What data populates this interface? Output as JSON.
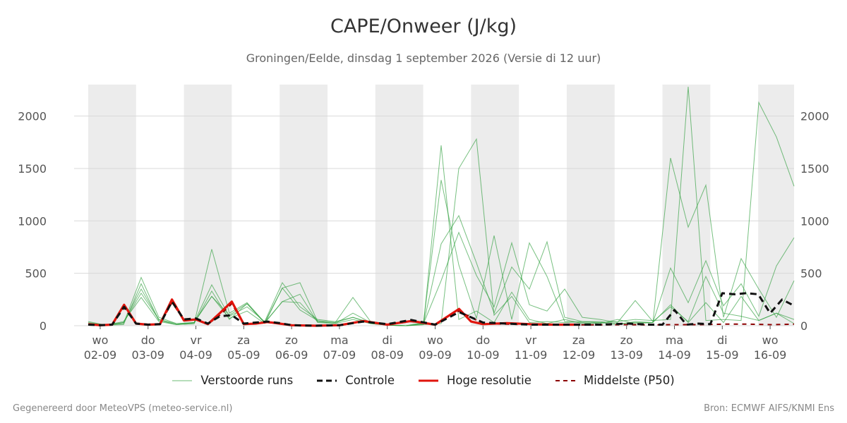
{
  "chart_data": {
    "type": "line",
    "title": "CAPE/Onweer (J/kg)",
    "subtitle": "Groningen/Eelde, dinsdag  1 september 2026 (Versie di 12 uur)",
    "ylim": [
      0,
      2300
    ],
    "yticks": [
      0,
      500,
      1000,
      1500,
      2000
    ],
    "grid": true,
    "legend_position": "bottom",
    "days": [
      {
        "dow": "wo",
        "date": "02-09"
      },
      {
        "dow": "do",
        "date": "03-09"
      },
      {
        "dow": "vr",
        "date": "04-09"
      },
      {
        "dow": "za",
        "date": "05-09"
      },
      {
        "dow": "zo",
        "date": "06-09"
      },
      {
        "dow": "ma",
        "date": "07-09"
      },
      {
        "dow": "di",
        "date": "08-09"
      },
      {
        "dow": "wo",
        "date": "09-09"
      },
      {
        "dow": "do",
        "date": "10-09"
      },
      {
        "dow": "vr",
        "date": "11-09"
      },
      {
        "dow": "za",
        "date": "12-09"
      },
      {
        "dow": "zo",
        "date": "13-09"
      },
      {
        "dow": "ma",
        "date": "14-09"
      },
      {
        "dow": "di",
        "date": "15-09"
      },
      {
        "dow": "wo",
        "date": "16-09"
      }
    ],
    "x_day_range": [
      -0.25,
      14.5
    ],
    "series": [
      {
        "name": "Controle",
        "color": "#111111",
        "dash": true,
        "x": [
          -0.25,
          0,
          0.25,
          0.5,
          0.75,
          1,
          1.25,
          1.5,
          1.75,
          2,
          2.25,
          2.5,
          2.75,
          3,
          3.25,
          3.5,
          3.75,
          4,
          4.5,
          5,
          5.5,
          6,
          6.5,
          7,
          7.5,
          8,
          8.5,
          9,
          9.5,
          10,
          10.5,
          11,
          11.5,
          11.75,
          12,
          12.25,
          12.5,
          12.75,
          13,
          13.25,
          13.5,
          13.75,
          14,
          14.25,
          14.5
        ],
        "values": [
          10,
          5,
          10,
          180,
          20,
          10,
          15,
          230,
          60,
          70,
          20,
          90,
          100,
          20,
          30,
          40,
          25,
          5,
          0,
          5,
          40,
          15,
          55,
          10,
          130,
          30,
          20,
          10,
          10,
          10,
          10,
          20,
          10,
          10,
          150,
          10,
          20,
          15,
          310,
          300,
          310,
          300,
          120,
          250,
          190
        ]
      },
      {
        "name": "Hoge resolutie",
        "color": "#e0140c",
        "dash": false,
        "x": [
          -0.25,
          0,
          0.25,
          0.5,
          0.75,
          1,
          1.25,
          1.5,
          1.75,
          2,
          2.25,
          2.5,
          2.75,
          3,
          3.25,
          3.5,
          3.75,
          4,
          4.5,
          5,
          5.5,
          6,
          6.5,
          7,
          7.5,
          7.75,
          8,
          8.5,
          9,
          9.5,
          10
        ],
        "values": [
          15,
          5,
          10,
          200,
          20,
          10,
          15,
          250,
          50,
          60,
          15,
          120,
          230,
          15,
          20,
          35,
          20,
          5,
          0,
          5,
          45,
          10,
          45,
          10,
          160,
          40,
          15,
          25,
          15,
          10,
          10
        ]
      },
      {
        "name": "Middelste (P50)",
        "color": "#8b0000",
        "dash": true,
        "x": [
          -0.25,
          0,
          0.25,
          0.5,
          0.75,
          1,
          1.25,
          1.5,
          1.75,
          2,
          2.25,
          2.5,
          2.75,
          3,
          3.25,
          3.5,
          3.75,
          4,
          4.5,
          5,
          5.5,
          6,
          6.5,
          7,
          7.5,
          8,
          8.5,
          9,
          9.5,
          10,
          10.5,
          11,
          11.5,
          12,
          12.5,
          13,
          13.5,
          14,
          14.5
        ],
        "values": [
          10,
          5,
          10,
          170,
          20,
          10,
          15,
          220,
          60,
          60,
          15,
          100,
          210,
          15,
          20,
          30,
          20,
          5,
          0,
          5,
          40,
          10,
          40,
          10,
          140,
          20,
          15,
          10,
          8,
          8,
          8,
          10,
          8,
          10,
          10,
          15,
          15,
          10,
          15
        ]
      }
    ],
    "ensemble": {
      "name": "Verstoorde runs",
      "color": "#2e9e3c",
      "runs": [
        [
          30,
          5,
          20,
          460,
          80,
          20,
          30,
          390,
          90,
          180,
          40,
          410,
          180,
          60,
          40,
          80,
          30,
          5,
          0,
          10,
          1720,
          60,
          140,
          30,
          320,
          60,
          20,
          60,
          20,
          30,
          40,
          60,
          50,
          60,
          2280,
          50,
          60,
          50,
          2130,
          1800,
          1330
        ],
        [
          20,
          5,
          30,
          310,
          60,
          10,
          20,
          730,
          120,
          220,
          30,
          360,
          410,
          40,
          30,
          270,
          40,
          5,
          0,
          10,
          20,
          1500,
          1780,
          100,
          280,
          30,
          40,
          30,
          40,
          40,
          20,
          30,
          30,
          1600,
          940,
          1340,
          80,
          640,
          350,
          80,
          430
        ],
        [
          40,
          5,
          10,
          400,
          50,
          10,
          20,
          330,
          60,
          210,
          25,
          230,
          300,
          30,
          20,
          120,
          30,
          5,
          0,
          30,
          1390,
          580,
          70,
          860,
          60,
          790,
          470,
          40,
          30,
          20,
          60,
          20,
          30,
          550,
          220,
          620,
          190,
          400,
          90,
          570,
          840
        ],
        [
          10,
          5,
          40,
          270,
          40,
          10,
          30,
          280,
          70,
          140,
          20,
          360,
          150,
          50,
          30,
          80,
          20,
          5,
          0,
          20,
          780,
          1050,
          600,
          120,
          560,
          350,
          800,
          80,
          40,
          30,
          10,
          40,
          30,
          200,
          30,
          220,
          30,
          280,
          50,
          120,
          20
        ],
        [
          20,
          5,
          30,
          350,
          60,
          20,
          30,
          280,
          100,
          210,
          30,
          230,
          220,
          40,
          20,
          60,
          20,
          5,
          0,
          20,
          430,
          890,
          480,
          180,
          790,
          200,
          140,
          350,
          80,
          60,
          30,
          240,
          40,
          180,
          40,
          470,
          120,
          90,
          50,
          120,
          60
        ]
      ]
    }
  },
  "legend": [
    {
      "label": "Verstoorde runs",
      "kind": "thin-green"
    },
    {
      "label": "Controle",
      "kind": "black-dash"
    },
    {
      "label": "Hoge resolutie",
      "kind": "red-solid"
    },
    {
      "label": "Middelste (P50)",
      "kind": "darkred-dash"
    }
  ],
  "footer": {
    "left": "Gegenereerd door MeteoVPS (meteo-service.nl)",
    "right": "Bron: ECMWF AIFS/KNMI Ens"
  }
}
